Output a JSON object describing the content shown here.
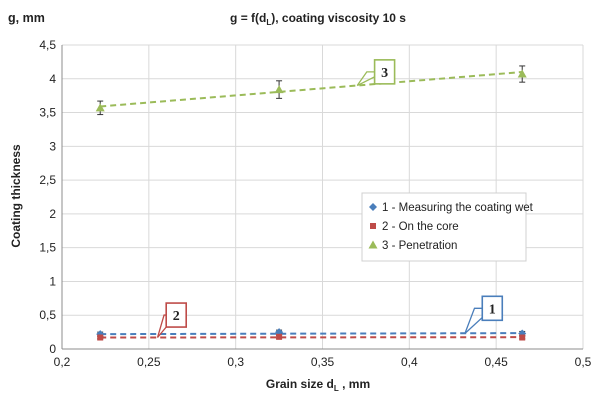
{
  "chart_data": {
    "type": "scatter",
    "title": "g = f(d",
    "title_sub": "L",
    "title_rest": "), coating viscosity 10 s",
    "y_corner_label": "g, mm",
    "ylabel": "Coating thickness",
    "xlabel": "Grain size d",
    "xlabel_sub": "L",
    "xlabel_rest": " , mm",
    "xlim": [
      0.2,
      0.5
    ],
    "ylim": [
      0,
      4.5
    ],
    "x_ticks": [
      "0,2",
      "0,25",
      "0,3",
      "0,35",
      "0,4",
      "0,45",
      "0,5"
    ],
    "x_tick_values": [
      0.2,
      0.25,
      0.3,
      0.35,
      0.4,
      0.45,
      0.5
    ],
    "y_ticks": [
      "0",
      "0,5",
      "1",
      "1,5",
      "2",
      "2,5",
      "3",
      "3,5",
      "4",
      "4,5"
    ],
    "y_tick_values": [
      0,
      0.5,
      1,
      1.5,
      2,
      2.5,
      3,
      3.5,
      4,
      4.5
    ],
    "grid": true,
    "legend_position": "center-right",
    "series": [
      {
        "name": "1 - Measuring the coating wet",
        "color": "#4a7ebb",
        "marker": "diamond",
        "x": [
          0.222,
          0.325,
          0.465
        ],
        "y": [
          0.22,
          0.25,
          0.23
        ],
        "error": [
          0.03,
          0.03,
          0.03
        ],
        "trend": [
          0.22,
          0.235
        ]
      },
      {
        "name": "2 - On the core",
        "color": "#be4b48",
        "marker": "square",
        "x": [
          0.222,
          0.325,
          0.465
        ],
        "y": [
          0.17,
          0.18,
          0.17
        ],
        "error": [
          0.02,
          0.02,
          0.02
        ],
        "trend": [
          0.17,
          0.175
        ]
      },
      {
        "name": "3 - Penetration",
        "color": "#9bbb59",
        "marker": "triangle",
        "x": [
          0.222,
          0.325,
          0.465
        ],
        "y": [
          3.57,
          3.84,
          4.07
        ],
        "error": [
          0.1,
          0.13,
          0.12
        ],
        "trend": [
          3.59,
          4.1
        ]
      }
    ],
    "callouts": [
      {
        "label": "1",
        "series": 0,
        "color": "#4a7ebb",
        "box_x": 0.442,
        "box_y": 0.78,
        "anchor_x": 0.432,
        "anchor_y": 0.23
      },
      {
        "label": "2",
        "series": 1,
        "color": "#be4b48",
        "box_x": 0.26,
        "box_y": 0.68,
        "anchor_x": 0.255,
        "anchor_y": 0.17
      },
      {
        "label": "3",
        "series": 2,
        "color": "#9bbb59",
        "box_x": 0.38,
        "box_y": 4.28,
        "anchor_x": 0.37,
        "anchor_y": 3.9
      }
    ]
  }
}
